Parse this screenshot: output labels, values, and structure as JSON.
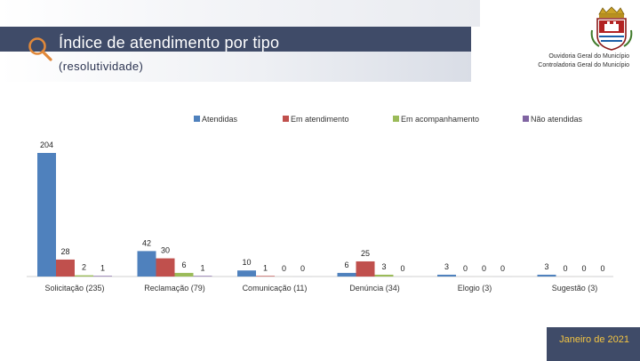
{
  "header": {
    "title": "Índice de atendimento por tipo",
    "subtitle": "(resolutividade)"
  },
  "organization": {
    "line1": "Ouvidoria Geral do Município",
    "line2": "Controladoria Geral do Município"
  },
  "footer": {
    "date": "Janeiro de 2021"
  },
  "icons": {
    "header": "search-icon",
    "crest": "municipal-coat-of-arms"
  },
  "colors": {
    "header_bar": "#3f4b68",
    "footer_text": "#f4c542",
    "series": [
      "#4f81bd",
      "#c0504d",
      "#9bbb59",
      "#8064a2"
    ]
  },
  "chart_data": {
    "type": "bar",
    "categories": [
      "Solicitação (235)",
      "Reclamação (79)",
      "Comunicação (11)",
      "Denúncia (34)",
      "Elogio (3)",
      "Sugestão (3)"
    ],
    "series": [
      {
        "name": "Atendidas",
        "values": [
          204,
          42,
          10,
          6,
          3,
          3
        ]
      },
      {
        "name": "Em atendimento",
        "values": [
          28,
          30,
          1,
          25,
          0,
          0
        ]
      },
      {
        "name": "Em acompanhamento",
        "values": [
          2,
          6,
          0,
          3,
          0,
          0
        ]
      },
      {
        "name": "Não atendidas",
        "values": [
          1,
          1,
          0,
          0,
          0,
          0
        ]
      }
    ],
    "ylim": [
      0,
      204
    ],
    "legend": "top",
    "grid": false
  }
}
